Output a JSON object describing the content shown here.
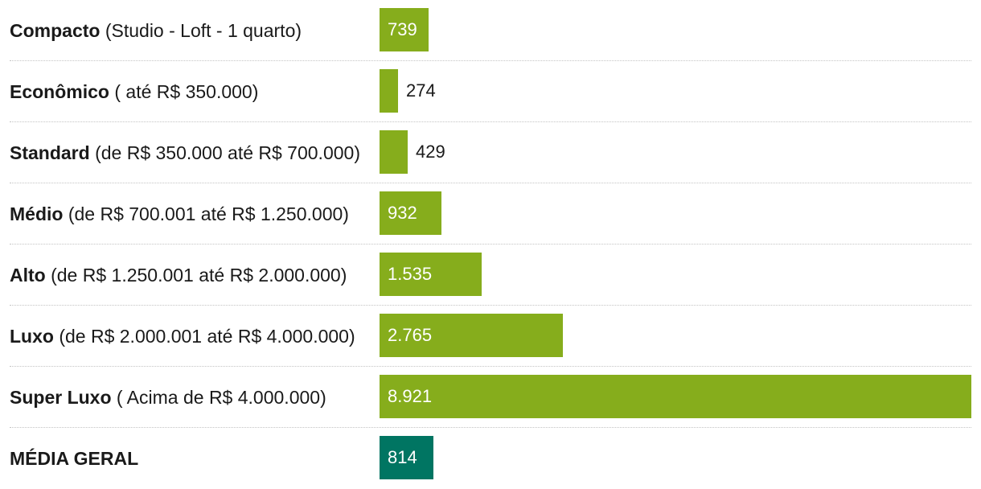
{
  "chart_data": {
    "type": "bar",
    "orientation": "horizontal",
    "categories": [
      {
        "name": "Compacto",
        "detail": "(Studio - Loft - 1 quarto)"
      },
      {
        "name": "Econômico",
        "detail": "( até R$ 350.000)"
      },
      {
        "name": "Standard",
        "detail": "(de R$ 350.000 até R$ 700.000)"
      },
      {
        "name": "Médio",
        "detail": "(de R$ 700.001 até R$ 1.250.000)"
      },
      {
        "name": "Alto",
        "detail": "(de R$ 1.250.001 até R$ 2.000.000)"
      },
      {
        "name": "Luxo",
        "detail": "(de R$ 2.000.001 até R$ 4.000.000)"
      },
      {
        "name": "Super Luxo",
        "detail": "( Acima de R$ 4.000.000)"
      },
      {
        "name": "MÉDIA GERAL",
        "detail": ""
      }
    ],
    "values": [
      739,
      274,
      429,
      932,
      1535,
      2765,
      8921,
      814
    ],
    "value_labels": [
      "739",
      "274",
      "429",
      "932",
      "1.535",
      "2.765",
      "8.921",
      "814"
    ],
    "xlim": [
      0,
      8921
    ],
    "grid": false,
    "colors": {
      "bar": "#86ad1c",
      "average_bar": "#007562",
      "label_inside": "#ffffff",
      "label_outside": "#1a1a1a",
      "divider": "#c4c4c4"
    }
  }
}
